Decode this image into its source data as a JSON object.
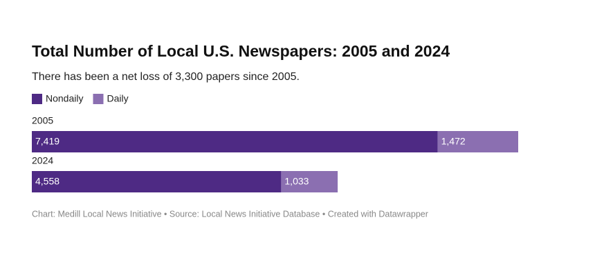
{
  "chart_data": {
    "type": "stacked-bar",
    "title": "Total Number of Local U.S. Newspapers: 2005 and 2024",
    "subtitle": "There has been a net loss of 3,300 papers since 2005.",
    "categories": [
      "2005",
      "2024"
    ],
    "series": [
      {
        "name": "Nondaily",
        "color": "#4e2a84",
        "values": [
          7419,
          4558
        ],
        "value_labels": [
          "7,419",
          "4,558"
        ]
      },
      {
        "name": "Daily",
        "color": "#8b6fb1",
        "values": [
          1472,
          1033
        ],
        "value_labels": [
          "1,472",
          "1,033"
        ]
      }
    ],
    "source": "Chart: Medill Local News Initiative • Source: Local News Initiative Database • Created with Datawrapper"
  }
}
